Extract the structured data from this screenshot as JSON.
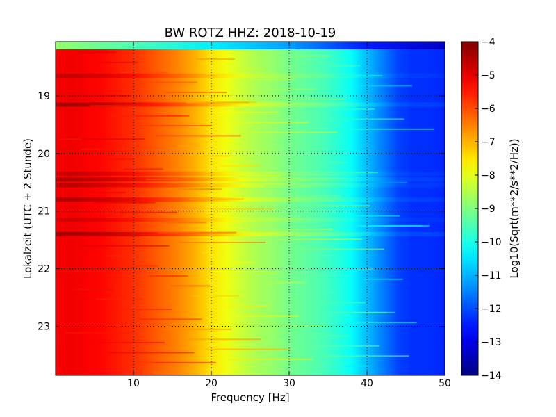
{
  "chart_data": {
    "type": "heatmap",
    "title": "BW ROTZ HHZ: 2018-10-19",
    "xlabel": "Frequency [Hz]",
    "ylabel": "Lokalzeit (UTC + 2 Stunde)",
    "xlim": [
      0,
      50
    ],
    "ylim": [
      23.85,
      18.06
    ],
    "x_ticks": [
      10,
      20,
      30,
      40,
      50
    ],
    "y_ticks": [
      19,
      20,
      21,
      22,
      23
    ],
    "grid": true,
    "colormap": "jet",
    "colorbar": {
      "label": "Log10(Sqrt(m**2/s**2/Hz))",
      "range": [
        -14,
        -4
      ],
      "ticks": [
        -4,
        -5,
        -6,
        -7,
        -8,
        -9,
        -10,
        -11,
        -12,
        -13,
        -14
      ]
    },
    "spectrum_profile": {
      "frequency_hz": [
        0,
        2,
        4,
        6,
        8,
        10,
        12,
        14,
        16,
        18,
        20,
        22,
        24,
        26,
        28,
        30,
        32,
        34,
        36,
        38,
        40,
        42,
        44,
        46,
        48,
        50
      ],
      "log10_amplitude": [
        -5.2,
        -5.1,
        -5.2,
        -5.3,
        -5.5,
        -5.7,
        -6.0,
        -6.3,
        -6.6,
        -7.0,
        -7.5,
        -7.9,
        -8.3,
        -8.6,
        -8.8,
        -9.1,
        -9.3,
        -9.5,
        -9.8,
        -10.2,
        -10.9,
        -11.5,
        -12.1,
        -12.3,
        -12.3,
        -12.4
      ]
    },
    "top_band": {
      "frequency_hz": [
        0,
        10,
        20,
        30,
        40,
        50
      ],
      "log10_amplitude": [
        -8.8,
        -9.5,
        -10.4,
        -11.2,
        -12.5,
        -13.3
      ]
    },
    "enhanced_rows_hours": [
      18.65,
      19.15,
      20.35,
      20.45,
      20.55,
      20.8,
      21.15,
      21.4
    ],
    "enhanced_rows_delta": [
      0.4,
      0.7,
      0.4,
      0.6,
      0.5,
      0.6,
      0.3,
      0.8
    ]
  }
}
